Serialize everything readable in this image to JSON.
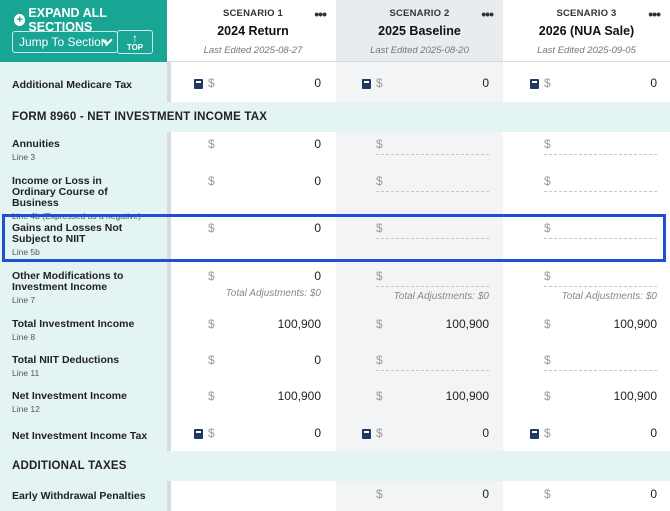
{
  "toolbar": {
    "expand_label": "EXPAND ALL SECTIONS",
    "jump_label": "Jump To Section",
    "top_label": "TOP"
  },
  "scenarios": [
    {
      "label": "SCENARIO 1",
      "name": "2024 Return",
      "edited": "Last Edited 2025-08-27",
      "menu": "•••"
    },
    {
      "label": "SCENARIO 2",
      "name": "2025 Baseline",
      "edited": "Last Edited 2025-08-20",
      "menu": "•••"
    },
    {
      "label": "SCENARIO 3",
      "name": "2026 (NUA Sale)",
      "edited": "Last Edited 2025-09-05",
      "menu": "•••"
    }
  ],
  "currency": "$",
  "rows": {
    "addl_medicare": {
      "title": "Additional Medicare Tax",
      "values": [
        "0",
        "0",
        "0"
      ]
    },
    "section_8960": "FORM 8960 - NET INVESTMENT INCOME TAX",
    "annuities": {
      "title": "Annuities",
      "sub": "Line 3",
      "values": [
        "0",
        "",
        ""
      ]
    },
    "ordinary_income": {
      "title": "Income or Loss in Ordinary Course of Business",
      "sub": "Line 4b (Expressed as a negative)",
      "values": [
        "0",
        "",
        ""
      ]
    },
    "gains_losses": {
      "title": "Gains and Losses Not Subject to NIIT",
      "sub": "Line 5b",
      "values": [
        "0",
        "",
        ""
      ]
    },
    "other_mods": {
      "title": "Other Modifications to Investment Income",
      "sub": "Line 7",
      "values": [
        "0",
        "",
        ""
      ],
      "adjustments": [
        "Total Adjustments: $0",
        "Total Adjustments: $0",
        "Total Adjustments: $0"
      ]
    },
    "total_investment": {
      "title": "Total Investment Income",
      "sub": "Line 8",
      "values": [
        "100,900",
        "100,900",
        "100,900"
      ]
    },
    "total_niit_deductions": {
      "title": "Total NIIT Deductions",
      "sub": "Line 11",
      "values": [
        "0",
        "",
        ""
      ]
    },
    "net_investment": {
      "title": "Net Investment Income",
      "sub": "Line 12",
      "values": [
        "100,900",
        "100,900",
        "100,900"
      ]
    },
    "niit_tax": {
      "title": "Net Investment Income Tax",
      "values": [
        "0",
        "0",
        "0"
      ]
    },
    "section_additional": "ADDITIONAL TAXES",
    "early_withdrawal": {
      "title": "Early Withdrawal Penalties",
      "values": [
        "",
        "0",
        "0"
      ]
    }
  }
}
